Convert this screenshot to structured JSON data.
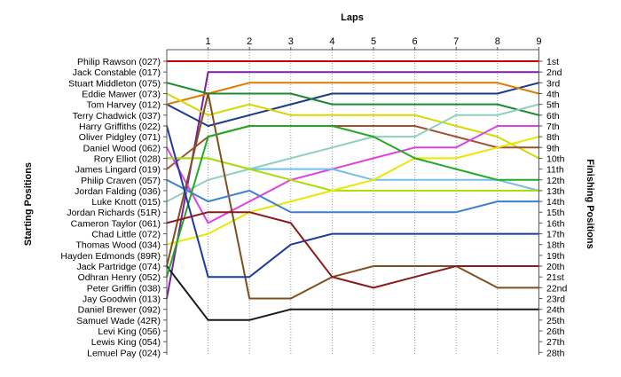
{
  "chart_data": {
    "type": "line",
    "title": "",
    "x_axis_title": "Laps",
    "y_left_title": "Starting Positions",
    "y_right_title": "Finishing Positions",
    "x": [
      0,
      1,
      2,
      3,
      4,
      5,
      6,
      7,
      8,
      9
    ],
    "x_tick_labels": [
      "1",
      "2",
      "3",
      "4",
      "5",
      "6",
      "7",
      "8",
      "9"
    ],
    "y_range": [
      1,
      28
    ],
    "y_inverted": true,
    "starting_labels": [
      "Philip Rawson (027)",
      "Jack Constable (017)",
      "Stuart Middleton (075)",
      "Eddie Mawer (073)",
      "Tom Harvey (012)",
      "Terry Chadwick (037)",
      "Harry Griffiths (022)",
      "Oliver Pidgley (071)",
      "Daniel Wood (062)",
      "Rory Elliot (028)",
      "James Lingard (019)",
      "Philip Craven (057)",
      "Jordan Falding (036)",
      "Luke Knott (015)",
      "Jordan Richards (51R)",
      "Cameron Taylor (061)",
      "Chad Little (072)",
      "Thomas Wood (034)",
      "Hayden Edmonds (89R)",
      "Jack Partridge (074)",
      "Odhran Henry (052)",
      "Peter Griffin (038)",
      "Jay Goodwin (013)",
      "Daniel Brewer (092)",
      "Samuel Wade (42R)",
      "Levi King (056)",
      "Lewis King (054)",
      "Lemuel Pay (024)"
    ],
    "finishing_labels": [
      "1st",
      "2nd",
      "3rd",
      "4th",
      "5th",
      "6th",
      "7th",
      "8th",
      "9th",
      "10th",
      "11th",
      "12th",
      "13th",
      "14th",
      "15th",
      "16th",
      "17th",
      "18th",
      "19th",
      "20th",
      "21st",
      "22nd",
      "23rd",
      "24th",
      "25th",
      "26th",
      "27th",
      "28th"
    ],
    "series": [
      {
        "color": "#d00000",
        "values": [
          1,
          1,
          1,
          1,
          1,
          1,
          1,
          1,
          1,
          1
        ]
      },
      {
        "color": "#7b1fa2",
        "values": [
          23,
          2,
          2,
          2,
          2,
          2,
          2,
          2,
          2,
          2
        ]
      },
      {
        "color": "#1e3a8a",
        "values": [
          5,
          7,
          6,
          5,
          4,
          4,
          4,
          4,
          4,
          3
        ]
      },
      {
        "color": "#e07b00",
        "values": [
          5,
          4,
          3,
          3,
          3,
          3,
          3,
          3,
          3,
          4
        ]
      },
      {
        "color": "#1a8c2e",
        "values": [
          3,
          4,
          4,
          4,
          5,
          5,
          5,
          5,
          5,
          6
        ]
      },
      {
        "color": "#d8d800",
        "values": [
          4,
          6,
          5,
          6,
          6,
          6,
          6,
          7,
          8,
          10
        ]
      },
      {
        "color": "#a0522d",
        "values": [
          11,
          8,
          7,
          7,
          7,
          7,
          7,
          8,
          9,
          9
        ]
      },
      {
        "color": "#8fd0c0",
        "values": [
          14,
          12,
          11,
          10,
          9,
          8,
          8,
          6,
          6,
          5
        ]
      },
      {
        "color": "#e040e0",
        "values": [
          9,
          16,
          14,
          12,
          11,
          10,
          9,
          9,
          7,
          7
        ]
      },
      {
        "color": "#70c0f0",
        "values": [
          10,
          10,
          11,
          11,
          11,
          12,
          12,
          12,
          12,
          13
        ]
      },
      {
        "color": "#aadd00",
        "values": [
          10,
          10,
          11,
          12,
          13,
          13,
          13,
          13,
          13,
          13
        ]
      },
      {
        "color": "#e8e800",
        "values": [
          18,
          17,
          15,
          14,
          13,
          12,
          10,
          10,
          9,
          8
        ]
      },
      {
        "color": "#7f4f1f",
        "values": [
          20,
          4,
          23,
          23,
          21,
          20,
          20,
          20,
          22,
          22
        ]
      },
      {
        "color": "#1a1a1a",
        "values": [
          20,
          25,
          25,
          24,
          24,
          24,
          24,
          24,
          24,
          24
        ]
      },
      {
        "color": "#3a80d0",
        "values": [
          12,
          14,
          13,
          15,
          15,
          15,
          15,
          15,
          14,
          14
        ]
      },
      {
        "color": "#22aa22",
        "values": [
          21,
          8,
          7,
          7,
          7,
          8,
          10,
          11,
          12,
          12
        ]
      },
      {
        "color": "#1e3aa0",
        "values": [
          7,
          21,
          21,
          18,
          17,
          17,
          17,
          17,
          17,
          17
        ]
      },
      {
        "color": "#8b1a1a",
        "values": [
          16,
          15,
          15,
          16,
          21,
          22,
          21,
          20,
          20,
          20
        ]
      }
    ]
  }
}
